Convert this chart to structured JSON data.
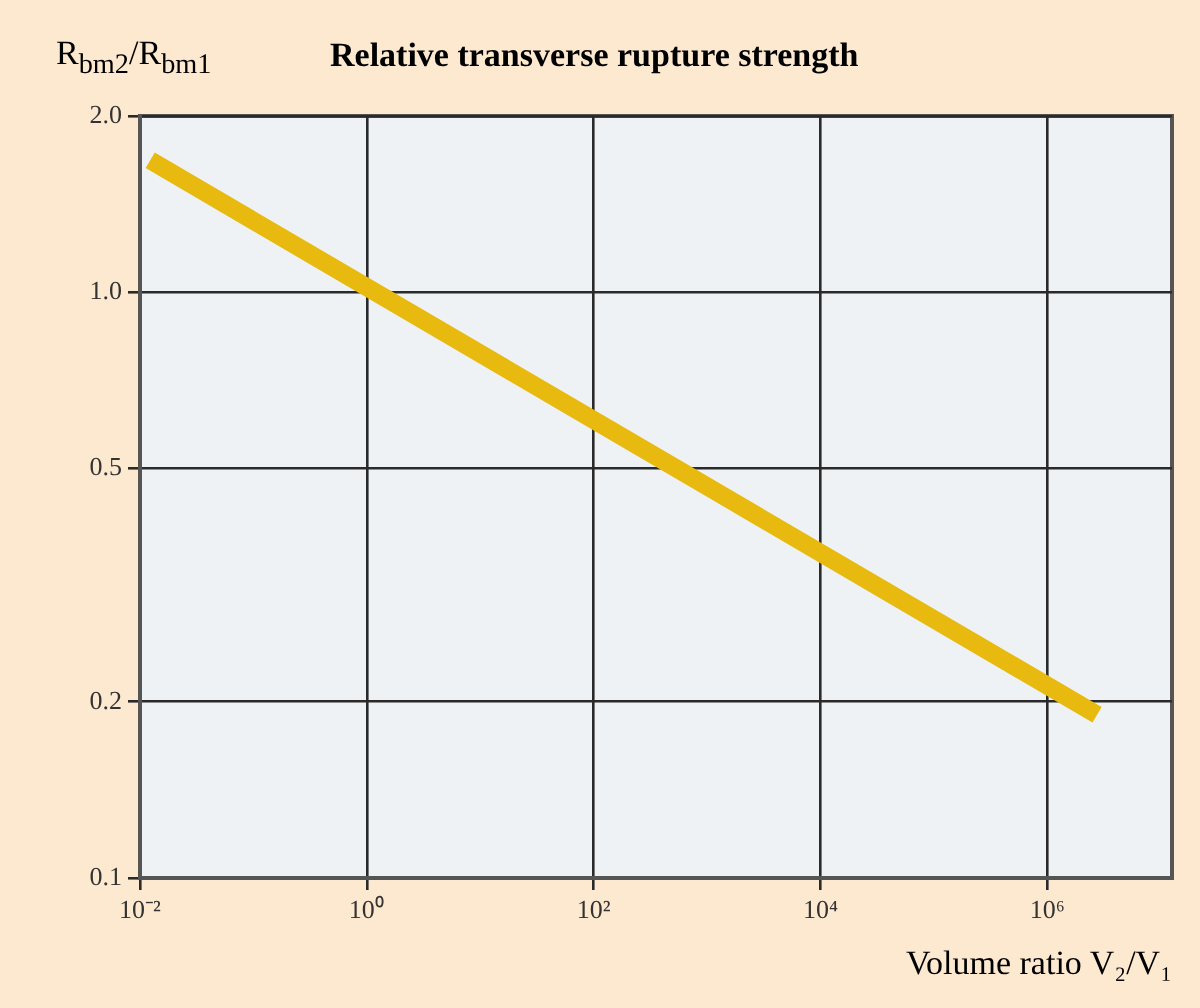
{
  "chart_data": {
    "type": "line",
    "title": "Relative transverse rupture strength",
    "ylabel": "R$_{bm2}$/R$_{bm1}$",
    "xlabel": "Volume ratio V₂/V₁",
    "log": "xy",
    "xlim": [
      0.01,
      12600000
    ],
    "ylim": [
      0.1,
      2.0
    ],
    "xticks": [
      {
        "value": 0.01,
        "label": "10⁻²"
      },
      {
        "value": 1,
        "label": "10⁰"
      },
      {
        "value": 100,
        "label": "10²"
      },
      {
        "value": 10000,
        "label": "10⁴"
      },
      {
        "value": 1000000,
        "label": "10⁶"
      }
    ],
    "yticks": [
      0.1,
      0.2,
      0.5,
      {
        "value": 1,
        "label": "1.0"
      },
      {
        "value": 2,
        "label": "2.0"
      }
    ],
    "grid": true,
    "marker": "none",
    "line_style": "solid",
    "series": [
      {
        "x": [
          0.0123,
          2750000
        ],
        "values": [
          1.68,
          0.19
        ],
        "color": "#e8b90e"
      }
    ]
  }
}
